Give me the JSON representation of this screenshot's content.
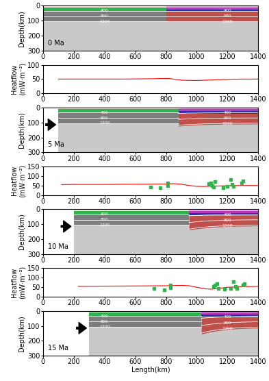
{
  "chart_data": {
    "type": "geodynamic_model",
    "x_label": "Length(km)",
    "xlim": [
      0,
      1400
    ],
    "xticks": [
      0,
      200,
      400,
      600,
      800,
      1000,
      1200,
      1400
    ],
    "model_axis": {
      "y_label": "Depth(km)",
      "ylim": [
        300,
        0
      ],
      "yticks": [
        0,
        100,
        200,
        300
      ]
    },
    "heatflow_axis": {
      "y_label": "Heatflow\n(mW·m⁻²)"
    },
    "layers": {
      "left": {
        "surface": 12,
        "crust_base": 35,
        "lith_base": 110
      },
      "right": {
        "surface": 12,
        "upper_crust_base": 25,
        "lower_crust_base": 40,
        "lith_base": 110
      }
    },
    "isotherms": [
      {
        "label": "400",
        "depth": 35
      },
      {
        "label": "800",
        "depth": 70
      },
      {
        "label": "1200",
        "depth": 105
      }
    ],
    "isotherm_label_x": [
      400,
      1200
    ],
    "model_panels": [
      {
        "label": "0 Ma",
        "left_edge": 0,
        "suture": 800,
        "right_lith_base_at_suture": 110
      },
      {
        "label": "5 Ma",
        "left_edge": 100,
        "suture": 880,
        "right_lith_base_at_suture": 125
      },
      {
        "label": "10 Ma",
        "left_edge": 200,
        "suture": 950,
        "right_lith_base_at_suture": 140
      },
      {
        "label": "15 Ma",
        "left_edge": 300,
        "suture": 1030,
        "right_lith_base_at_suture": 155
      }
    ],
    "heatflow_panels": [
      {
        "ylim": [
          0,
          100
        ],
        "yticks": [
          0,
          50,
          100
        ],
        "model": {
          "x": [
            100,
            300,
            500,
            700,
            780,
            820,
            860,
            900,
            1000,
            1100,
            1200,
            1300,
            1400
          ],
          "y": [
            50,
            50,
            50,
            51,
            52,
            52,
            49,
            46,
            45,
            47,
            49,
            50,
            50
          ]
        },
        "observed": {
          "x": [],
          "y": []
        }
      },
      {
        "ylim": [
          0,
          150
        ],
        "yticks": [
          0,
          50,
          100,
          150
        ],
        "model": {
          "x": [
            120,
            200,
            400,
            600,
            800,
            850,
            900,
            950,
            1000,
            1050,
            1100,
            1200,
            1300,
            1400
          ],
          "y": [
            55,
            56,
            56,
            57,
            58,
            60,
            57,
            50,
            46,
            45,
            47,
            49,
            50,
            50
          ]
        },
        "observed": {
          "x": [
            700,
            760,
            810,
            810,
            1080,
            1090,
            1100,
            1110,
            1120,
            1170,
            1200,
            1220,
            1230,
            1240,
            1290,
            1300
          ],
          "y": [
            42,
            38,
            50,
            62,
            60,
            65,
            50,
            42,
            70,
            40,
            45,
            80,
            55,
            45,
            65,
            75
          ]
        }
      },
      {
        "ylim": [
          0,
          150
        ],
        "yticks": [
          0,
          50,
          100,
          150
        ],
        "model": {
          "x": [
            230,
            400,
            600,
            800,
            900,
            950,
            1000,
            1050,
            1100,
            1150,
            1200,
            1300,
            1400
          ],
          "y": [
            55,
            56,
            57,
            58,
            60,
            58,
            50,
            42,
            40,
            45,
            50,
            53,
            55
          ]
        },
        "observed": {
          "x": [
            720,
            790,
            830,
            830,
            1110,
            1120,
            1130,
            1140,
            1180,
            1220,
            1240,
            1250,
            1260,
            1300,
            1310
          ],
          "y": [
            42,
            38,
            48,
            60,
            55,
            62,
            68,
            45,
            40,
            45,
            78,
            55,
            45,
            60,
            70
          ]
        }
      }
    ]
  }
}
